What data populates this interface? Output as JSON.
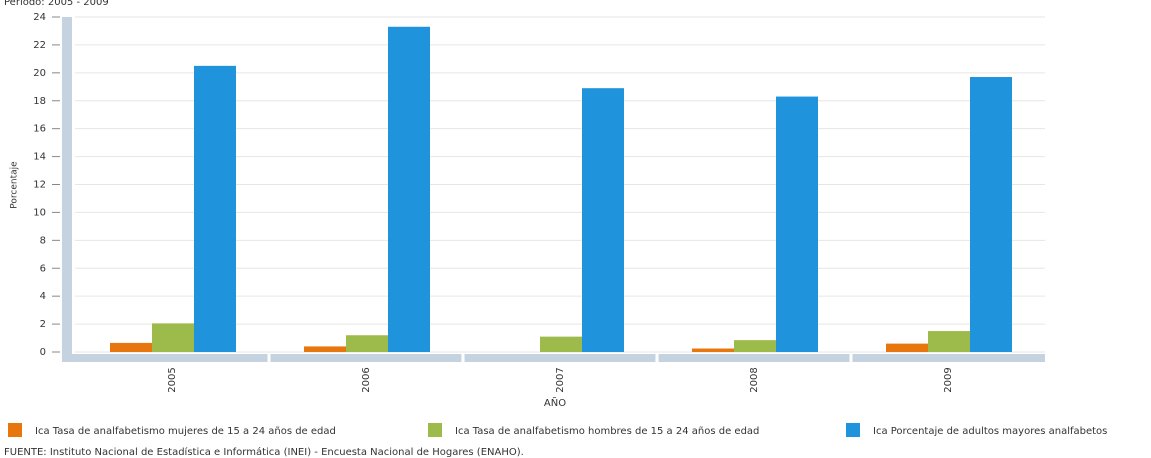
{
  "chart_data": {
    "type": "bar",
    "subtitle": "Periodo: 2005 - 2009",
    "y_label": "Porcentaje",
    "x_label": "AÑO",
    "categories": [
      "2005",
      "2006",
      "2007",
      "2008",
      "2009"
    ],
    "series": [
      {
        "name": "Ica Tasa de analfabetismo mujeres de 15 a 24 años de edad",
        "color": "#e8760f",
        "values": [
          0.65,
          0.4,
          null,
          0.25,
          0.6
        ]
      },
      {
        "name": "Ica Tasa de analfabetismo hombres de 15 a 24 años de edad",
        "color": "#9cbb4a",
        "values": [
          2.05,
          1.2,
          1.1,
          0.85,
          1.5
        ]
      },
      {
        "name": "Ica Porcentaje de adultos mayores analfabetos",
        "color": "#1f93dc",
        "values": [
          20.5,
          23.3,
          18.9,
          18.3,
          19.7
        ]
      }
    ],
    "ylim": [
      0,
      24
    ],
    "yticks": [
      0,
      2,
      4,
      6,
      8,
      10,
      12,
      14,
      16,
      18,
      20,
      22,
      24
    ],
    "grid": true,
    "footer": "FUENTE:  Instituto Nacional de Estadística e Informática (INEI) - Encuesta Nacional de Hogares (ENAHO)."
  }
}
